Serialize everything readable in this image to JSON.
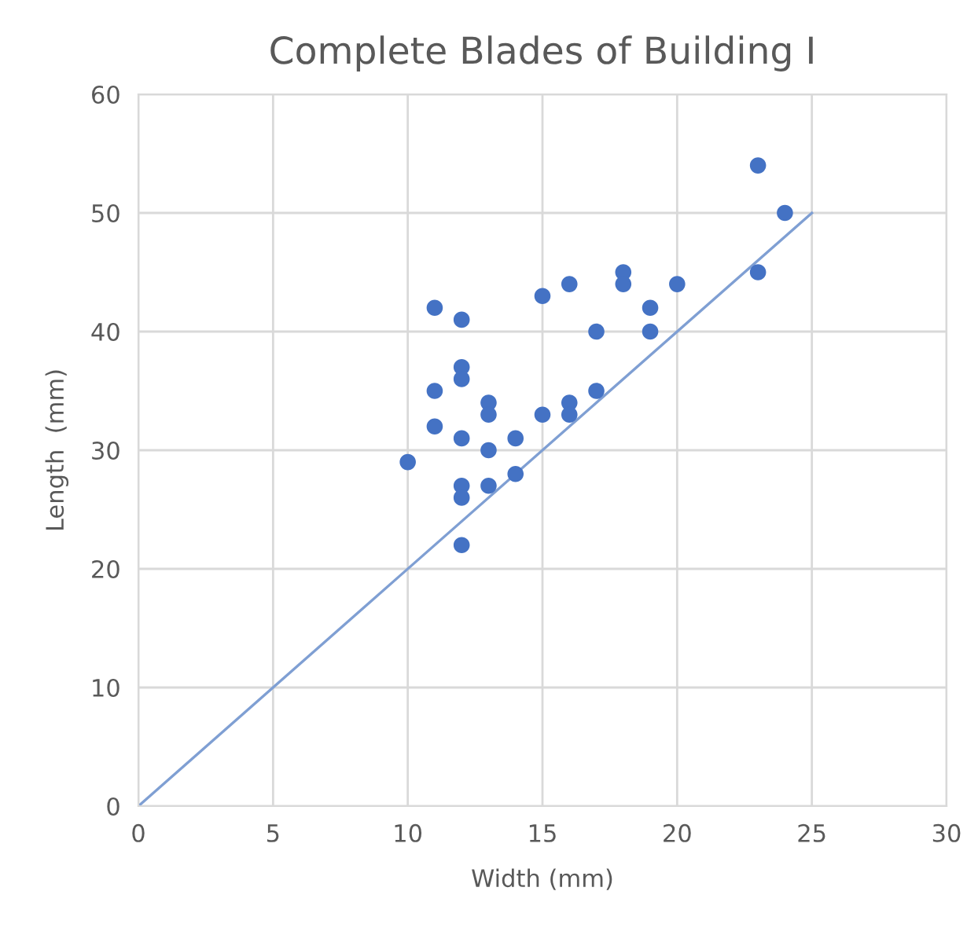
{
  "chart_data": {
    "type": "scatter",
    "title": "Complete Blades of Building I",
    "xlabel": "Width (mm)",
    "ylabel": "Length  (mm)",
    "xlim": [
      0,
      30
    ],
    "ylim": [
      0,
      60
    ],
    "xticks": [
      0,
      5,
      10,
      15,
      20,
      25,
      30
    ],
    "yticks": [
      0,
      10,
      20,
      30,
      40,
      50,
      60
    ],
    "grid": true,
    "legend": false,
    "series": [
      {
        "marker": "circle",
        "color": "#4472c4",
        "x": [
          10,
          11,
          11,
          11,
          12,
          12,
          12,
          12,
          12,
          12,
          12,
          13,
          13,
          13,
          13,
          14,
          14,
          15,
          15,
          16,
          16,
          16,
          17,
          17,
          18,
          18,
          19,
          19,
          20,
          23,
          23,
          24
        ],
        "values": [
          29,
          42,
          35,
          32,
          41,
          37,
          36,
          31,
          27,
          26,
          22,
          34,
          33,
          30,
          27,
          31,
          28,
          43,
          33,
          44,
          34,
          33,
          40,
          35,
          45,
          44,
          42,
          40,
          44,
          54,
          45,
          50
        ]
      },
      {
        "type": "line",
        "color": "#7f9fd3",
        "x": [
          0,
          25
        ],
        "values": [
          0,
          50
        ],
        "line_style": "solid",
        "marker": "none"
      }
    ]
  }
}
